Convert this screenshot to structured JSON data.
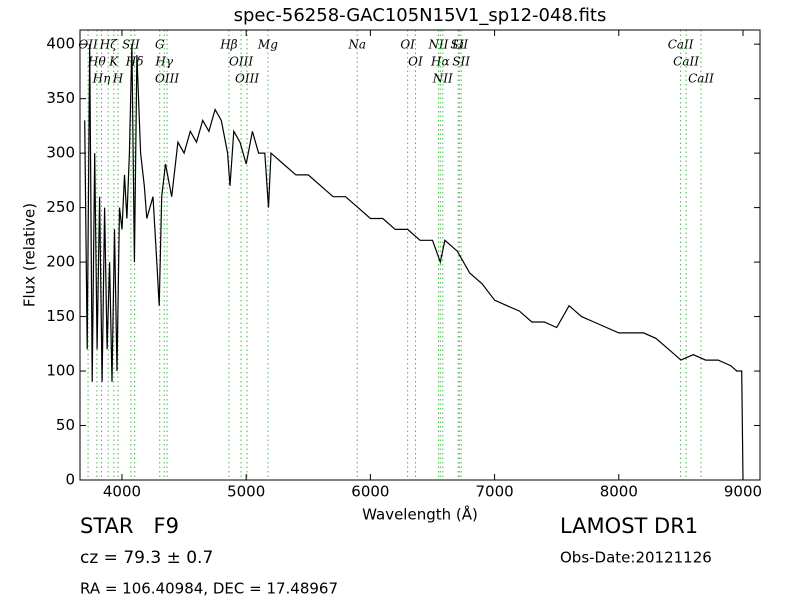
{
  "chart_data": {
    "type": "line",
    "title": "spec-56258-GAC105N15V1_sp12-048.fits",
    "x_label": "Wavelength (Å)",
    "y_label": "Flux (relative)",
    "x": [
      3700,
      3720,
      3740,
      3760,
      3780,
      3800,
      3820,
      3840,
      3860,
      3880,
      3900,
      3920,
      3940,
      3960,
      3980,
      4000,
      4020,
      4040,
      4060,
      4080,
      4100,
      4120,
      4150,
      4180,
      4200,
      4250,
      4280,
      4300,
      4320,
      4350,
      4400,
      4450,
      4500,
      4550,
      4600,
      4650,
      4700,
      4750,
      4800,
      4850,
      4870,
      4900,
      4950,
      5000,
      5050,
      5100,
      5150,
      5180,
      5200,
      5300,
      5400,
      5500,
      5600,
      5700,
      5800,
      5900,
      6000,
      6100,
      6200,
      6300,
      6400,
      6500,
      6563,
      6600,
      6700,
      6800,
      6900,
      7000,
      7100,
      7200,
      7300,
      7400,
      7500,
      7600,
      7700,
      7800,
      7900,
      8000,
      8100,
      8200,
      8300,
      8400,
      8500,
      8600,
      8700,
      8800,
      8900,
      8950,
      8990,
      9000
    ],
    "series": [
      {
        "name": "flux",
        "color": "#000000",
        "values": [
          330,
          120,
          400,
          90,
          300,
          120,
          260,
          90,
          250,
          120,
          200,
          90,
          230,
          100,
          250,
          230,
          280,
          240,
          300,
          400,
          200,
          390,
          300,
          270,
          240,
          260,
          200,
          160,
          260,
          290,
          260,
          310,
          300,
          320,
          310,
          330,
          320,
          340,
          330,
          300,
          270,
          320,
          310,
          290,
          320,
          300,
          300,
          250,
          300,
          290,
          280,
          280,
          270,
          260,
          260,
          250,
          240,
          240,
          230,
          230,
          220,
          220,
          200,
          220,
          210,
          190,
          180,
          165,
          160,
          155,
          145,
          145,
          140,
          160,
          150,
          145,
          140,
          135,
          135,
          135,
          130,
          120,
          110,
          115,
          110,
          110,
          105,
          100,
          100,
          0
        ]
      }
    ],
    "xlim": [
      3662,
      9137
    ],
    "ylim": [
      0,
      413
    ],
    "xticks": [
      4000,
      5000,
      6000,
      7000,
      8000,
      9000
    ],
    "yticks": [
      0,
      50,
      100,
      150,
      200,
      250,
      300,
      350,
      400
    ],
    "lines_color": "#44bb44",
    "lines": [
      {
        "label": "OII",
        "wavelength": 3727
      },
      {
        "label": "Hθ",
        "wavelength": 3798
      },
      {
        "label": "Hη",
        "wavelength": 3835
      },
      {
        "label": "Hζ",
        "wavelength": 3889
      },
      {
        "label": "K",
        "wavelength": 3934
      },
      {
        "label": "H",
        "wavelength": 3968
      },
      {
        "label": "SII",
        "wavelength": 4072
      },
      {
        "label": "Hδ",
        "wavelength": 4102
      },
      {
        "label": "G",
        "wavelength": 4304
      },
      {
        "label": "Hγ",
        "wavelength": 4340
      },
      {
        "label": "OIII",
        "wavelength": 4363
      },
      {
        "label": "Hβ",
        "wavelength": 4861
      },
      {
        "label": "OIII",
        "wavelength": 4959
      },
      {
        "label": "OIII",
        "wavelength": 5007
      },
      {
        "label": "Mg",
        "wavelength": 5175
      },
      {
        "label": "Na",
        "wavelength": 5894
      },
      {
        "label": "OI",
        "wavelength": 6300
      },
      {
        "label": "OI",
        "wavelength": 6363
      },
      {
        "label": "NII",
        "wavelength": 6548
      },
      {
        "label": "Hα",
        "wavelength": 6563
      },
      {
        "label": "NII",
        "wavelength": 6583
      },
      {
        "label": "Li",
        "wavelength": 6707
      },
      {
        "label": "SII",
        "wavelength": 6716
      },
      {
        "label": "SII",
        "wavelength": 6731
      },
      {
        "label": "CaII",
        "wavelength": 8498
      },
      {
        "label": "CaII",
        "wavelength": 8542
      },
      {
        "label": "CaII",
        "wavelength": 8662
      }
    ],
    "info": {
      "class": "STAR   F9",
      "cz": "cz = 79.3 ± 0.7",
      "coords": "RA = 106.40984, DEC = 17.48967",
      "survey": "LAMOST DR1",
      "date": "Obs-Date:20121126"
    }
  }
}
